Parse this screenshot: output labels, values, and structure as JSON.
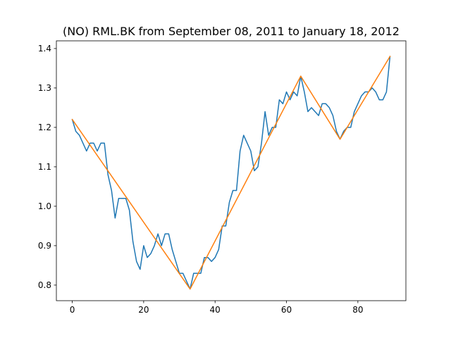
{
  "chart_data": {
    "type": "line",
    "title": "(NO) RML.BK from September 08, 2011 to January 18, 2012",
    "xlabel": "",
    "ylabel": "",
    "xlim": [
      -4.45,
      93.45
    ],
    "ylim": [
      0.7605,
      1.4195
    ],
    "xticks": [
      0,
      20,
      40,
      60,
      80
    ],
    "yticks": [
      0.8,
      0.9,
      1.0,
      1.1,
      1.2,
      1.3,
      1.4
    ],
    "ytick_labels": [
      "0.8",
      "0.9",
      "1.0",
      "1.1",
      "1.2",
      "1.3",
      "1.4"
    ],
    "grid": false,
    "series": [
      {
        "color": "#1f77b4",
        "x": [
          0,
          1,
          2,
          3,
          4,
          5,
          6,
          7,
          8,
          9,
          10,
          11,
          12,
          13,
          14,
          15,
          16,
          17,
          18,
          19,
          20,
          21,
          22,
          23,
          24,
          25,
          26,
          27,
          28,
          29,
          30,
          31,
          32,
          33,
          34,
          35,
          36,
          37,
          38,
          39,
          40,
          41,
          42,
          43,
          44,
          45,
          46,
          47,
          48,
          49,
          50,
          51,
          52,
          53,
          54,
          55,
          56,
          57,
          58,
          59,
          60,
          61,
          62,
          63,
          64,
          65,
          66,
          67,
          68,
          69,
          70,
          71,
          72,
          73,
          74,
          75,
          76,
          77,
          78,
          79,
          80,
          81,
          82,
          83,
          84,
          85,
          86,
          87,
          88,
          89
        ],
        "y": [
          1.22,
          1.19,
          1.18,
          1.16,
          1.14,
          1.16,
          1.16,
          1.14,
          1.16,
          1.16,
          1.08,
          1.04,
          0.97,
          1.02,
          1.02,
          1.02,
          0.99,
          0.91,
          0.86,
          0.84,
          0.9,
          0.87,
          0.88,
          0.9,
          0.93,
          0.9,
          0.93,
          0.93,
          0.89,
          0.86,
          0.83,
          0.83,
          0.81,
          0.79,
          0.83,
          0.83,
          0.83,
          0.87,
          0.87,
          0.86,
          0.87,
          0.89,
          0.95,
          0.95,
          1.01,
          1.04,
          1.04,
          1.14,
          1.18,
          1.16,
          1.14,
          1.09,
          1.1,
          1.16,
          1.24,
          1.18,
          1.2,
          1.2,
          1.27,
          1.26,
          1.29,
          1.27,
          1.29,
          1.28,
          1.33,
          1.29,
          1.24,
          1.25,
          1.24,
          1.23,
          1.26,
          1.26,
          1.25,
          1.23,
          1.19,
          1.17,
          1.19,
          1.2,
          1.2,
          1.24,
          1.26,
          1.28,
          1.29,
          1.29,
          1.3,
          1.29,
          1.27,
          1.27,
          1.29,
          1.38
        ]
      },
      {
        "color": "#ff7f0e",
        "x": [
          0,
          33,
          64,
          75,
          89
        ],
        "y": [
          1.22,
          0.79,
          1.33,
          1.17,
          1.38
        ]
      }
    ]
  }
}
